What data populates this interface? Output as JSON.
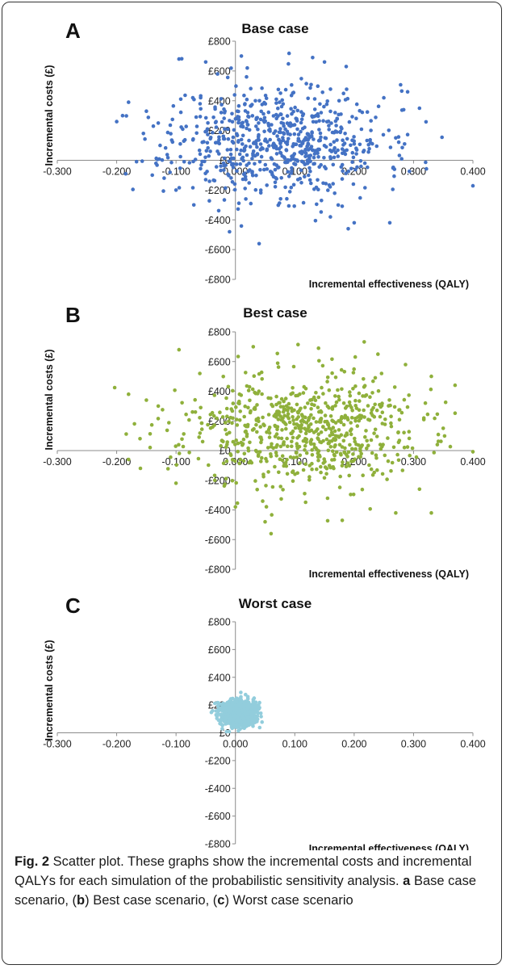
{
  "chart_data": [
    {
      "type": "scatter",
      "panel_label": "A",
      "title": "Base case",
      "xlabel": "Incremental effectiveness (QALY)",
      "ylabel": "Incremental costs (£)",
      "xlim": [
        -0.3,
        0.4
      ],
      "ylim": [
        -800,
        800
      ],
      "x_ticks": [
        "-0.300",
        "-0.200",
        "-0.100",
        "0.000",
        "0.100",
        "0.200",
        "0.300",
        "0.400"
      ],
      "y_ticks": [
        "£800",
        "£600",
        "£400",
        "£200",
        "£0",
        "-£200",
        "-£400",
        "-£600",
        "-£800"
      ],
      "color": "#4472c4",
      "cloud": {
        "n": 700,
        "x_mean": 0.07,
        "x_sd": 0.09,
        "y_mean": 130,
        "y_sd": 190
      },
      "points": [
        {
          "x": -0.19,
          "y": 300
        },
        {
          "x": -0.2,
          "y": 260
        },
        {
          "x": -0.18,
          "y": 390
        },
        {
          "x": -0.15,
          "y": 330
        },
        {
          "x": -0.155,
          "y": 180
        },
        {
          "x": -0.13,
          "y": 250
        },
        {
          "x": -0.14,
          "y": -100
        },
        {
          "x": -0.12,
          "y": -120
        },
        {
          "x": -0.1,
          "y": -200
        },
        {
          "x": -0.095,
          "y": 680
        },
        {
          "x": -0.05,
          "y": 660
        },
        {
          "x": -0.03,
          "y": 580
        },
        {
          "x": 0.01,
          "y": 700
        },
        {
          "x": 0.02,
          "y": 620
        },
        {
          "x": 0.13,
          "y": 690
        },
        {
          "x": 0.15,
          "y": 660
        },
        {
          "x": 0.29,
          "y": 460
        },
        {
          "x": 0.31,
          "y": 350
        },
        {
          "x": 0.28,
          "y": 10
        },
        {
          "x": 0.26,
          "y": -420
        },
        {
          "x": 0.19,
          "y": -460
        },
        {
          "x": 0.2,
          "y": -420
        },
        {
          "x": 0.04,
          "y": -560
        },
        {
          "x": -0.01,
          "y": -480
        },
        {
          "x": 0.27,
          "y": 150
        },
        {
          "x": 0.25,
          "y": 420
        },
        {
          "x": -0.07,
          "y": -300
        },
        {
          "x": 0.16,
          "y": -380
        }
      ]
    },
    {
      "type": "scatter",
      "panel_label": "B",
      "title": "Best case",
      "xlabel": "Incremental effectiveness (QALY)",
      "ylabel": "Incremental costs (£)",
      "xlim": [
        -0.3,
        0.4
      ],
      "ylim": [
        -800,
        800
      ],
      "x_ticks": [
        "-0.300",
        "-0.200",
        "-0.100",
        "0.000",
        "0.100",
        "0.200",
        "0.300",
        "0.400"
      ],
      "y_ticks": [
        "£800",
        "£600",
        "£400",
        "£200",
        "£0",
        "-£200",
        "-£400",
        "-£600",
        "-£800"
      ],
      "color": "#8fb03b",
      "cloud": {
        "n": 700,
        "x_mean": 0.11,
        "x_sd": 0.1,
        "y_mean": 130,
        "y_sd": 190
      },
      "points": [
        {
          "x": -0.18,
          "y": 380
        },
        {
          "x": -0.17,
          "y": 180
        },
        {
          "x": -0.15,
          "y": 340
        },
        {
          "x": -0.13,
          "y": 300
        },
        {
          "x": -0.18,
          "y": -60
        },
        {
          "x": -0.16,
          "y": -120
        },
        {
          "x": -0.1,
          "y": -220
        },
        {
          "x": -0.095,
          "y": 680
        },
        {
          "x": 0.03,
          "y": 700
        },
        {
          "x": 0.14,
          "y": 690
        },
        {
          "x": 0.24,
          "y": 650
        },
        {
          "x": 0.37,
          "y": 440
        },
        {
          "x": 0.35,
          "y": 150
        },
        {
          "x": 0.33,
          "y": 500
        },
        {
          "x": 0.33,
          "y": -420
        },
        {
          "x": 0.27,
          "y": -420
        },
        {
          "x": 0.31,
          "y": -260
        },
        {
          "x": 0.18,
          "y": -470
        },
        {
          "x": 0.06,
          "y": -560
        },
        {
          "x": 0.05,
          "y": -480
        },
        {
          "x": 0.0,
          "y": -380
        },
        {
          "x": 0.34,
          "y": 40
        },
        {
          "x": 0.32,
          "y": 320
        },
        {
          "x": -0.06,
          "y": 520
        }
      ]
    },
    {
      "type": "scatter",
      "panel_label": "C",
      "title": "Worst case",
      "xlabel": "Incremental effectiveness (QALY)",
      "ylabel": "Incremental costs (£)",
      "xlim": [
        -0.3,
        0.4
      ],
      "ylim": [
        -800,
        800
      ],
      "x_ticks": [
        "-0.300",
        "-0.200",
        "-0.100",
        "0.000",
        "0.100",
        "0.200",
        "0.300",
        "0.400"
      ],
      "y_ticks": [
        "£800",
        "£600",
        "£400",
        "£200",
        "£0",
        "-£200",
        "-£400",
        "-£600",
        "-£800"
      ],
      "color": "#92cddc",
      "cloud": {
        "n": 1000,
        "x_mean": 0.005,
        "x_sd": 0.014,
        "y_mean": 140,
        "y_sd": 45
      },
      "points": []
    }
  ],
  "caption": {
    "label": "Fig. 2",
    "text": " Scatter plot. These graphs show the incremental costs and incremental QALYs for each simulation of the probabilistic sensitivity analysis. ",
    "a": "a",
    "a_text": " Base case scenario, (",
    "b": "b",
    "b_text": ") Best case scenario, (",
    "c": "c",
    "c_text": ") Worst case scenario"
  }
}
